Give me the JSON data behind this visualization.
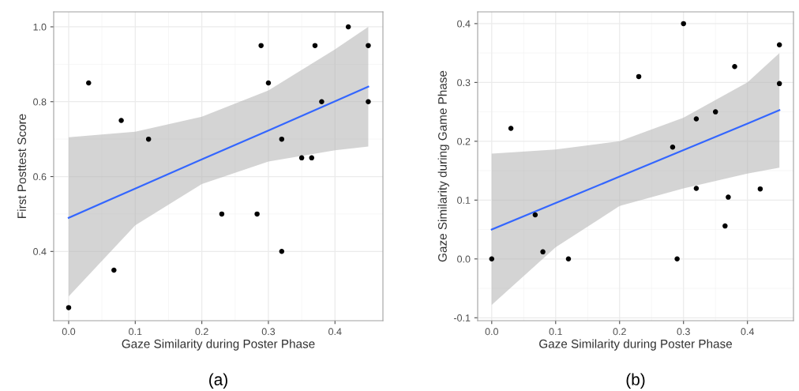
{
  "chart_data": [
    {
      "type": "scatter",
      "xlabel": "Gaze Similarity during Poster Phase",
      "ylabel": "First Posttest Score",
      "annotations": [
        "(a)"
      ],
      "xlim": [
        -0.0225,
        0.472
      ],
      "ylim": [
        0.215,
        1.04
      ],
      "xticks": [
        {
          "value": 0.0,
          "label": "0.0"
        },
        0.1,
        0.2,
        0.3,
        0.4
      ],
      "yticks": [
        {
          "value": 0.4,
          "label": "0.4"
        },
        {
          "value": 0.6,
          "label": "0.6"
        },
        {
          "value": 0.8,
          "label": "0.8"
        },
        {
          "value": 1.0,
          "label": "1.0"
        }
      ],
      "grid": true,
      "series": [
        {
          "marker": "circle",
          "color": "#000000",
          "x": [
            0.0,
            0.03,
            0.068,
            0.079,
            0.12,
            0.23,
            0.283,
            0.289,
            0.3,
            0.32,
            0.32,
            0.35,
            0.365,
            0.37,
            0.38,
            0.42,
            0.45,
            0.45
          ],
          "values": [
            0.25,
            0.85,
            0.35,
            0.75,
            0.7,
            0.5,
            0.5,
            0.95,
            0.85,
            0.7,
            0.4,
            0.65,
            0.65,
            0.95,
            0.8,
            1.0,
            0.95,
            0.8
          ]
        },
        {
          "type": "line",
          "color": "#3366ff",
          "x": [
            0.0,
            0.1,
            0.2,
            0.3,
            0.4,
            0.45
          ],
          "values": [
            0.49,
            0.568,
            0.646,
            0.723,
            0.801,
            0.84
          ],
          "lower": [
            0.28,
            0.47,
            0.58,
            0.64,
            0.67,
            0.68
          ],
          "upper": [
            0.705,
            0.72,
            0.76,
            0.83,
            0.94,
            1.0
          ]
        }
      ]
    },
    {
      "type": "scatter",
      "xlabel": "Gaze Similarity during Poster Phase",
      "ylabel": "Gaze Similarity during Game Phase",
      "annotations": [
        "(b)"
      ],
      "xlim": [
        -0.022,
        0.472
      ],
      "ylim": [
        -0.105,
        0.42
      ],
      "xticks": [
        {
          "value": 0.0,
          "label": "0.0"
        },
        0.1,
        0.2,
        0.3,
        0.4
      ],
      "yticks": [
        {
          "value": -0.1,
          "label": "-0.1"
        },
        {
          "value": 0.0,
          "label": "0.0"
        },
        {
          "value": 0.1,
          "label": "0.1"
        },
        {
          "value": 0.2,
          "label": "0.2"
        },
        {
          "value": 0.3,
          "label": "0.3"
        },
        {
          "value": 0.4,
          "label": "0.4"
        }
      ],
      "grid": true,
      "series": [
        {
          "marker": "circle",
          "color": "#000000",
          "x": [
            0.0,
            0.03,
            0.068,
            0.08,
            0.12,
            0.23,
            0.283,
            0.29,
            0.3,
            0.32,
            0.32,
            0.35,
            0.365,
            0.37,
            0.38,
            0.42,
            0.45,
            0.45
          ],
          "values": [
            0.0,
            0.222,
            0.075,
            0.012,
            0.0,
            0.31,
            0.19,
            0.0,
            0.4,
            0.238,
            0.12,
            0.25,
            0.056,
            0.105,
            0.327,
            0.119,
            0.364,
            0.298
          ]
        },
        {
          "type": "line",
          "color": "#3366ff",
          "x": [
            0.0,
            0.1,
            0.2,
            0.3,
            0.4,
            0.45
          ],
          "values": [
            0.05,
            0.095,
            0.14,
            0.185,
            0.23,
            0.253
          ],
          "lower": [
            -0.078,
            0.02,
            0.09,
            0.12,
            0.145,
            0.155
          ],
          "upper": [
            0.179,
            0.186,
            0.2,
            0.24,
            0.3,
            0.35
          ]
        }
      ]
    }
  ]
}
